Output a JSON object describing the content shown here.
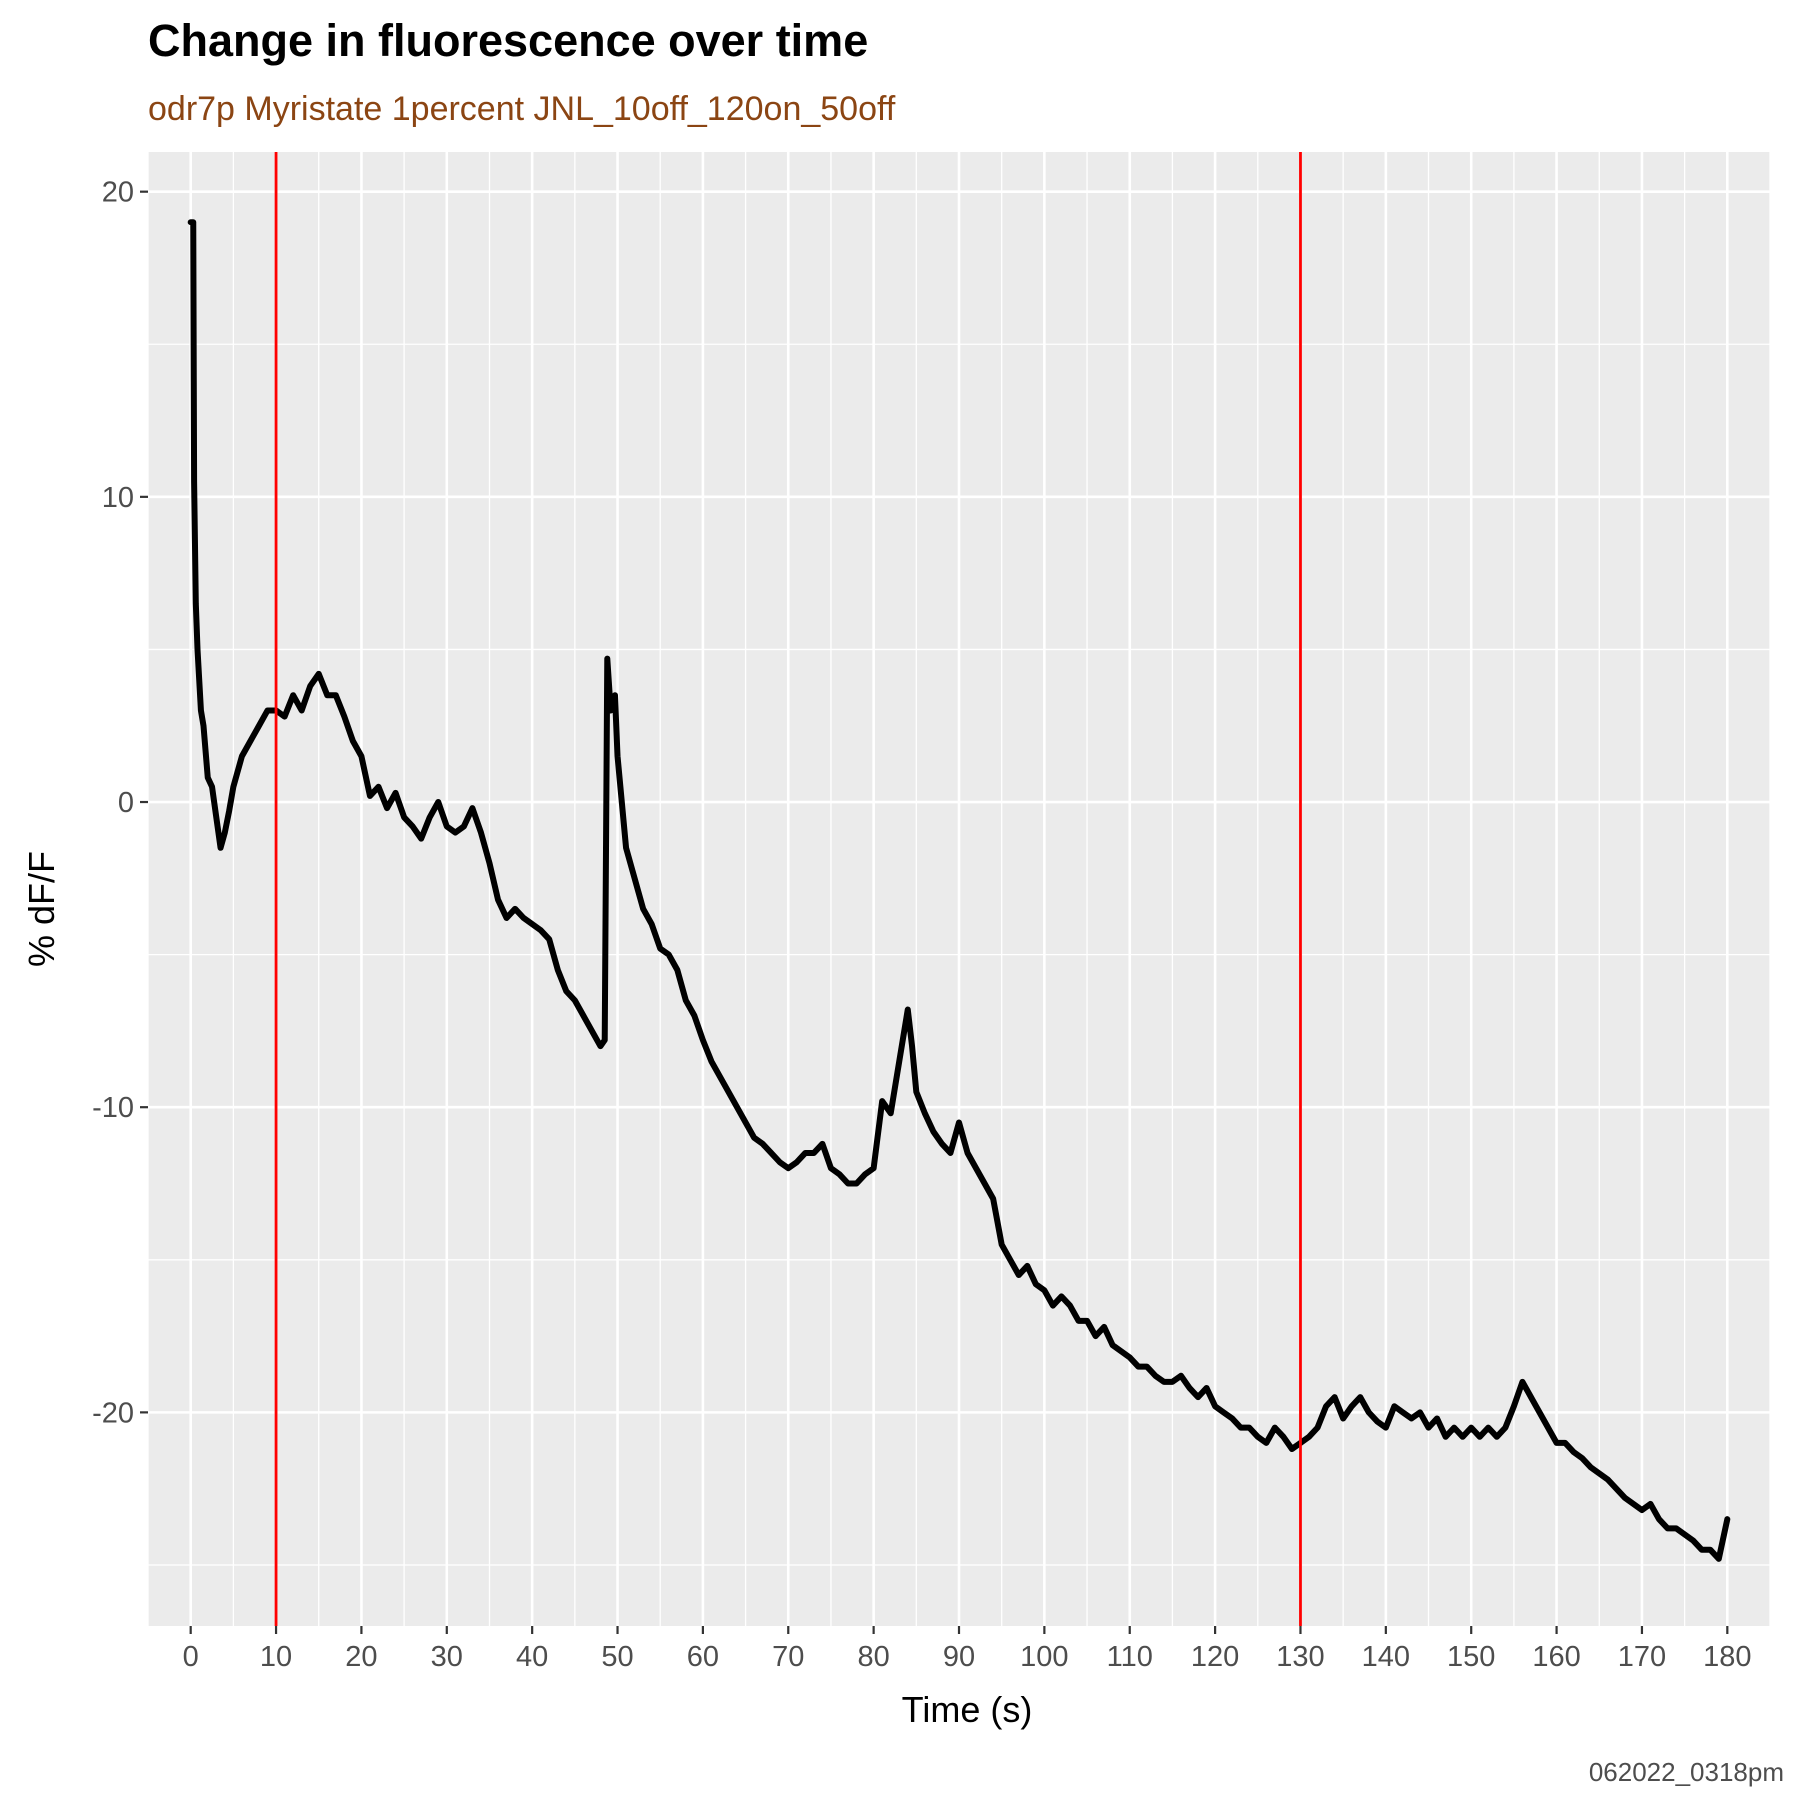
{
  "chart_data": {
    "type": "line",
    "title": "Change in fluorescence over time",
    "subtitle": "odr7p Myristate 1percent JNL_10off_120on_50off",
    "xlabel": "Time (s)",
    "ylabel": "% dF/F",
    "caption": "062022_0318pm",
    "xlim": [
      -5,
      185
    ],
    "ylim": [
      -27,
      21.3
    ],
    "x_ticks": [
      0,
      10,
      20,
      30,
      40,
      50,
      60,
      70,
      80,
      90,
      100,
      110,
      120,
      130,
      140,
      150,
      160,
      170,
      180
    ],
    "x_tick_labels": [
      "0",
      "10",
      "20",
      "30",
      "40",
      "50",
      "60",
      "70",
      "80",
      "90",
      "100",
      "110",
      "120",
      "130",
      "140",
      "150",
      "160",
      "170",
      "180"
    ],
    "y_ticks": [
      20,
      10,
      0,
      -10,
      -20
    ],
    "y_tick_labels": [
      "20",
      "10",
      "0",
      "-10",
      "-20"
    ],
    "grid": true,
    "vlines": [
      {
        "x": 10,
        "color": "#ff0000"
      },
      {
        "x": 130,
        "color": "#ff0000"
      }
    ],
    "series": [
      {
        "color": "#000000",
        "points": [
          [
            0,
            19
          ],
          [
            0.3,
            19
          ],
          [
            0.4,
            10.5
          ],
          [
            0.6,
            6.5
          ],
          [
            0.8,
            5.0
          ],
          [
            1.0,
            4.0
          ],
          [
            1.2,
            3.0
          ],
          [
            1.5,
            2.5
          ],
          [
            2,
            0.8
          ],
          [
            2.5,
            0.5
          ],
          [
            3,
            -0.5
          ],
          [
            3.5,
            -1.5
          ],
          [
            4,
            -1.0
          ],
          [
            4.5,
            -0.3
          ],
          [
            5,
            0.5
          ],
          [
            6,
            1.5
          ],
          [
            7,
            2.0
          ],
          [
            8,
            2.5
          ],
          [
            9,
            3.0
          ],
          [
            10,
            3.0
          ],
          [
            11,
            2.8
          ],
          [
            12,
            3.5
          ],
          [
            13,
            3.0
          ],
          [
            14,
            3.8
          ],
          [
            15,
            4.2
          ],
          [
            16,
            3.5
          ],
          [
            17,
            3.5
          ],
          [
            18,
            2.8
          ],
          [
            19,
            2.0
          ],
          [
            20,
            1.5
          ],
          [
            21,
            0.2
          ],
          [
            22,
            0.5
          ],
          [
            23,
            -0.2
          ],
          [
            24,
            0.3
          ],
          [
            25,
            -0.5
          ],
          [
            26,
            -0.8
          ],
          [
            27,
            -1.2
          ],
          [
            28,
            -0.5
          ],
          [
            29,
            0.0
          ],
          [
            30,
            -0.8
          ],
          [
            31,
            -1.0
          ],
          [
            32,
            -0.8
          ],
          [
            33,
            -0.2
          ],
          [
            34,
            -1.0
          ],
          [
            35,
            -2.0
          ],
          [
            36,
            -3.2
          ],
          [
            37,
            -3.8
          ],
          [
            38,
            -3.5
          ],
          [
            39,
            -3.8
          ],
          [
            40,
            -4.0
          ],
          [
            41,
            -4.2
          ],
          [
            42,
            -4.5
          ],
          [
            43,
            -5.5
          ],
          [
            44,
            -6.2
          ],
          [
            45,
            -6.5
          ],
          [
            46,
            -7.0
          ],
          [
            47,
            -7.5
          ],
          [
            48,
            -8.0
          ],
          [
            48.5,
            -7.8
          ],
          [
            48.8,
            4.7
          ],
          [
            49.2,
            3.0
          ],
          [
            49.7,
            3.5
          ],
          [
            50,
            1.5
          ],
          [
            51,
            -1.5
          ],
          [
            52,
            -2.5
          ],
          [
            53,
            -3.5
          ],
          [
            54,
            -4.0
          ],
          [
            55,
            -4.8
          ],
          [
            56,
            -5.0
          ],
          [
            57,
            -5.5
          ],
          [
            58,
            -6.5
          ],
          [
            59,
            -7.0
          ],
          [
            60,
            -7.8
          ],
          [
            61,
            -8.5
          ],
          [
            62,
            -9.0
          ],
          [
            63,
            -9.5
          ],
          [
            64,
            -10.0
          ],
          [
            65,
            -10.5
          ],
          [
            66,
            -11.0
          ],
          [
            67,
            -11.2
          ],
          [
            68,
            -11.5
          ],
          [
            69,
            -11.8
          ],
          [
            70,
            -12.0
          ],
          [
            71,
            -11.8
          ],
          [
            72,
            -11.5
          ],
          [
            73,
            -11.5
          ],
          [
            74,
            -11.2
          ],
          [
            75,
            -12.0
          ],
          [
            76,
            -12.2
          ],
          [
            77,
            -12.5
          ],
          [
            78,
            -12.5
          ],
          [
            79,
            -12.2
          ],
          [
            80,
            -12.0
          ],
          [
            81,
            -9.8
          ],
          [
            82,
            -10.2
          ],
          [
            83,
            -8.5
          ],
          [
            84,
            -6.8
          ],
          [
            84.5,
            -8.0
          ],
          [
            85,
            -9.5
          ],
          [
            86,
            -10.2
          ],
          [
            87,
            -10.8
          ],
          [
            88,
            -11.2
          ],
          [
            89,
            -11.5
          ],
          [
            90,
            -10.5
          ],
          [
            91,
            -11.5
          ],
          [
            92,
            -12.0
          ],
          [
            93,
            -12.5
          ],
          [
            94,
            -13.0
          ],
          [
            95,
            -14.5
          ],
          [
            96,
            -15.0
          ],
          [
            97,
            -15.5
          ],
          [
            98,
            -15.2
          ],
          [
            99,
            -15.8
          ],
          [
            100,
            -16.0
          ],
          [
            101,
            -16.5
          ],
          [
            102,
            -16.2
          ],
          [
            103,
            -16.5
          ],
          [
            104,
            -17.0
          ],
          [
            105,
            -17.0
          ],
          [
            106,
            -17.5
          ],
          [
            107,
            -17.2
          ],
          [
            108,
            -17.8
          ],
          [
            109,
            -18.0
          ],
          [
            110,
            -18.2
          ],
          [
            111,
            -18.5
          ],
          [
            112,
            -18.5
          ],
          [
            113,
            -18.8
          ],
          [
            114,
            -19.0
          ],
          [
            115,
            -19.0
          ],
          [
            116,
            -18.8
          ],
          [
            117,
            -19.2
          ],
          [
            118,
            -19.5
          ],
          [
            119,
            -19.2
          ],
          [
            120,
            -19.8
          ],
          [
            121,
            -20.0
          ],
          [
            122,
            -20.2
          ],
          [
            123,
            -20.5
          ],
          [
            124,
            -20.5
          ],
          [
            125,
            -20.8
          ],
          [
            126,
            -21.0
          ],
          [
            127,
            -20.5
          ],
          [
            128,
            -20.8
          ],
          [
            129,
            -21.2
          ],
          [
            130,
            -21.0
          ],
          [
            131,
            -20.8
          ],
          [
            132,
            -20.5
          ],
          [
            133,
            -19.8
          ],
          [
            134,
            -19.5
          ],
          [
            135,
            -20.2
          ],
          [
            136,
            -19.8
          ],
          [
            137,
            -19.5
          ],
          [
            138,
            -20.0
          ],
          [
            139,
            -20.3
          ],
          [
            140,
            -20.5
          ],
          [
            141,
            -19.8
          ],
          [
            142,
            -20.0
          ],
          [
            143,
            -20.2
          ],
          [
            144,
            -20.0
          ],
          [
            145,
            -20.5
          ],
          [
            146,
            -20.2
          ],
          [
            147,
            -20.8
          ],
          [
            148,
            -20.5
          ],
          [
            149,
            -20.8
          ],
          [
            150,
            -20.5
          ],
          [
            151,
            -20.8
          ],
          [
            152,
            -20.5
          ],
          [
            153,
            -20.8
          ],
          [
            154,
            -20.5
          ],
          [
            155,
            -19.8
          ],
          [
            156,
            -19.0
          ],
          [
            157,
            -19.5
          ],
          [
            158,
            -20.0
          ],
          [
            159,
            -20.5
          ],
          [
            160,
            -21.0
          ],
          [
            161,
            -21.0
          ],
          [
            162,
            -21.3
          ],
          [
            163,
            -21.5
          ],
          [
            164,
            -21.8
          ],
          [
            165,
            -22.0
          ],
          [
            166,
            -22.2
          ],
          [
            167,
            -22.5
          ],
          [
            168,
            -22.8
          ],
          [
            169,
            -23.0
          ],
          [
            170,
            -23.2
          ],
          [
            171,
            -23.0
          ],
          [
            172,
            -23.5
          ],
          [
            173,
            -23.8
          ],
          [
            174,
            -23.8
          ],
          [
            175,
            -24.0
          ],
          [
            176,
            -24.2
          ],
          [
            177,
            -24.5
          ],
          [
            178,
            -24.5
          ],
          [
            179,
            -24.8
          ],
          [
            180,
            -23.5
          ]
        ]
      }
    ]
  }
}
